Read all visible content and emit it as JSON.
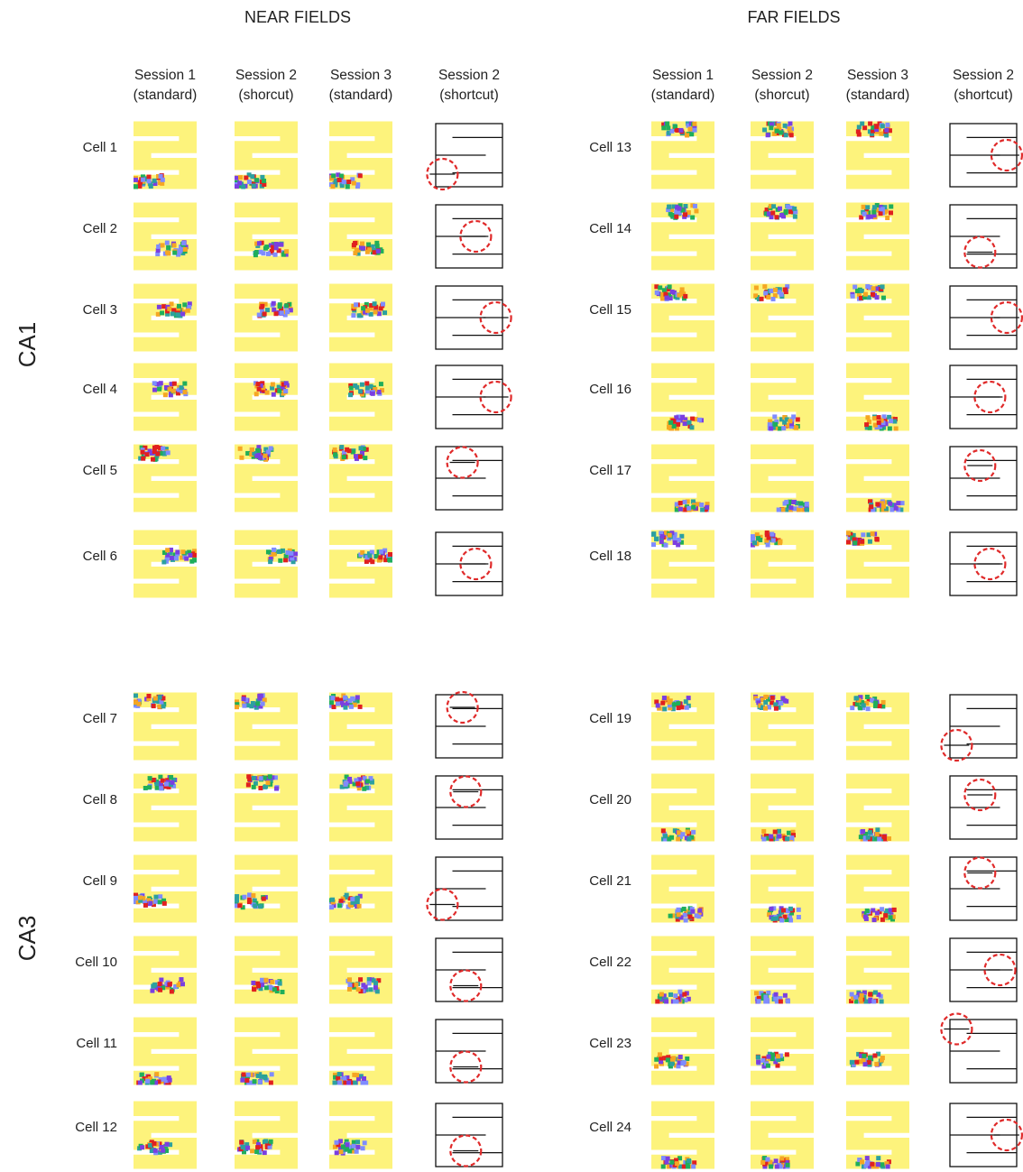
{
  "sections": [
    {
      "title": "NEAR FIELDS",
      "columns": [
        [
          "Session 1",
          "(standard)"
        ],
        [
          "Session 2",
          "(shorcut)"
        ],
        [
          "Session 3",
          "(standard)"
        ],
        [
          "Session 2",
          "(shortcut)"
        ]
      ],
      "cells": [
        [
          "Cell 1",
          "Cell 2",
          "Cell 3",
          "Cell 4",
          "Cell 5",
          "Cell 6"
        ],
        [
          "Cell 7",
          "Cell 8",
          "Cell 9",
          "Cell 10",
          "Cell 11",
          "Cell 12"
        ]
      ]
    },
    {
      "title": "FAR FIELDS",
      "columns": [
        [
          "Session 1",
          "(standard)"
        ],
        [
          "Session 2",
          "(shorcut)"
        ],
        [
          "Session 3",
          "(standard)"
        ],
        [
          "Session 2",
          "(shortcut)"
        ]
      ],
      "cells": [
        [
          "Cell 13",
          "Cell 14",
          "Cell 15",
          "Cell 16",
          "Cell 17",
          "Cell 18"
        ],
        [
          "Cell 19",
          "Cell 20",
          "Cell 21",
          "Cell 22",
          "Cell 23",
          "Cell 24"
        ]
      ]
    }
  ],
  "regions": [
    "CA1",
    "CA3"
  ]
}
